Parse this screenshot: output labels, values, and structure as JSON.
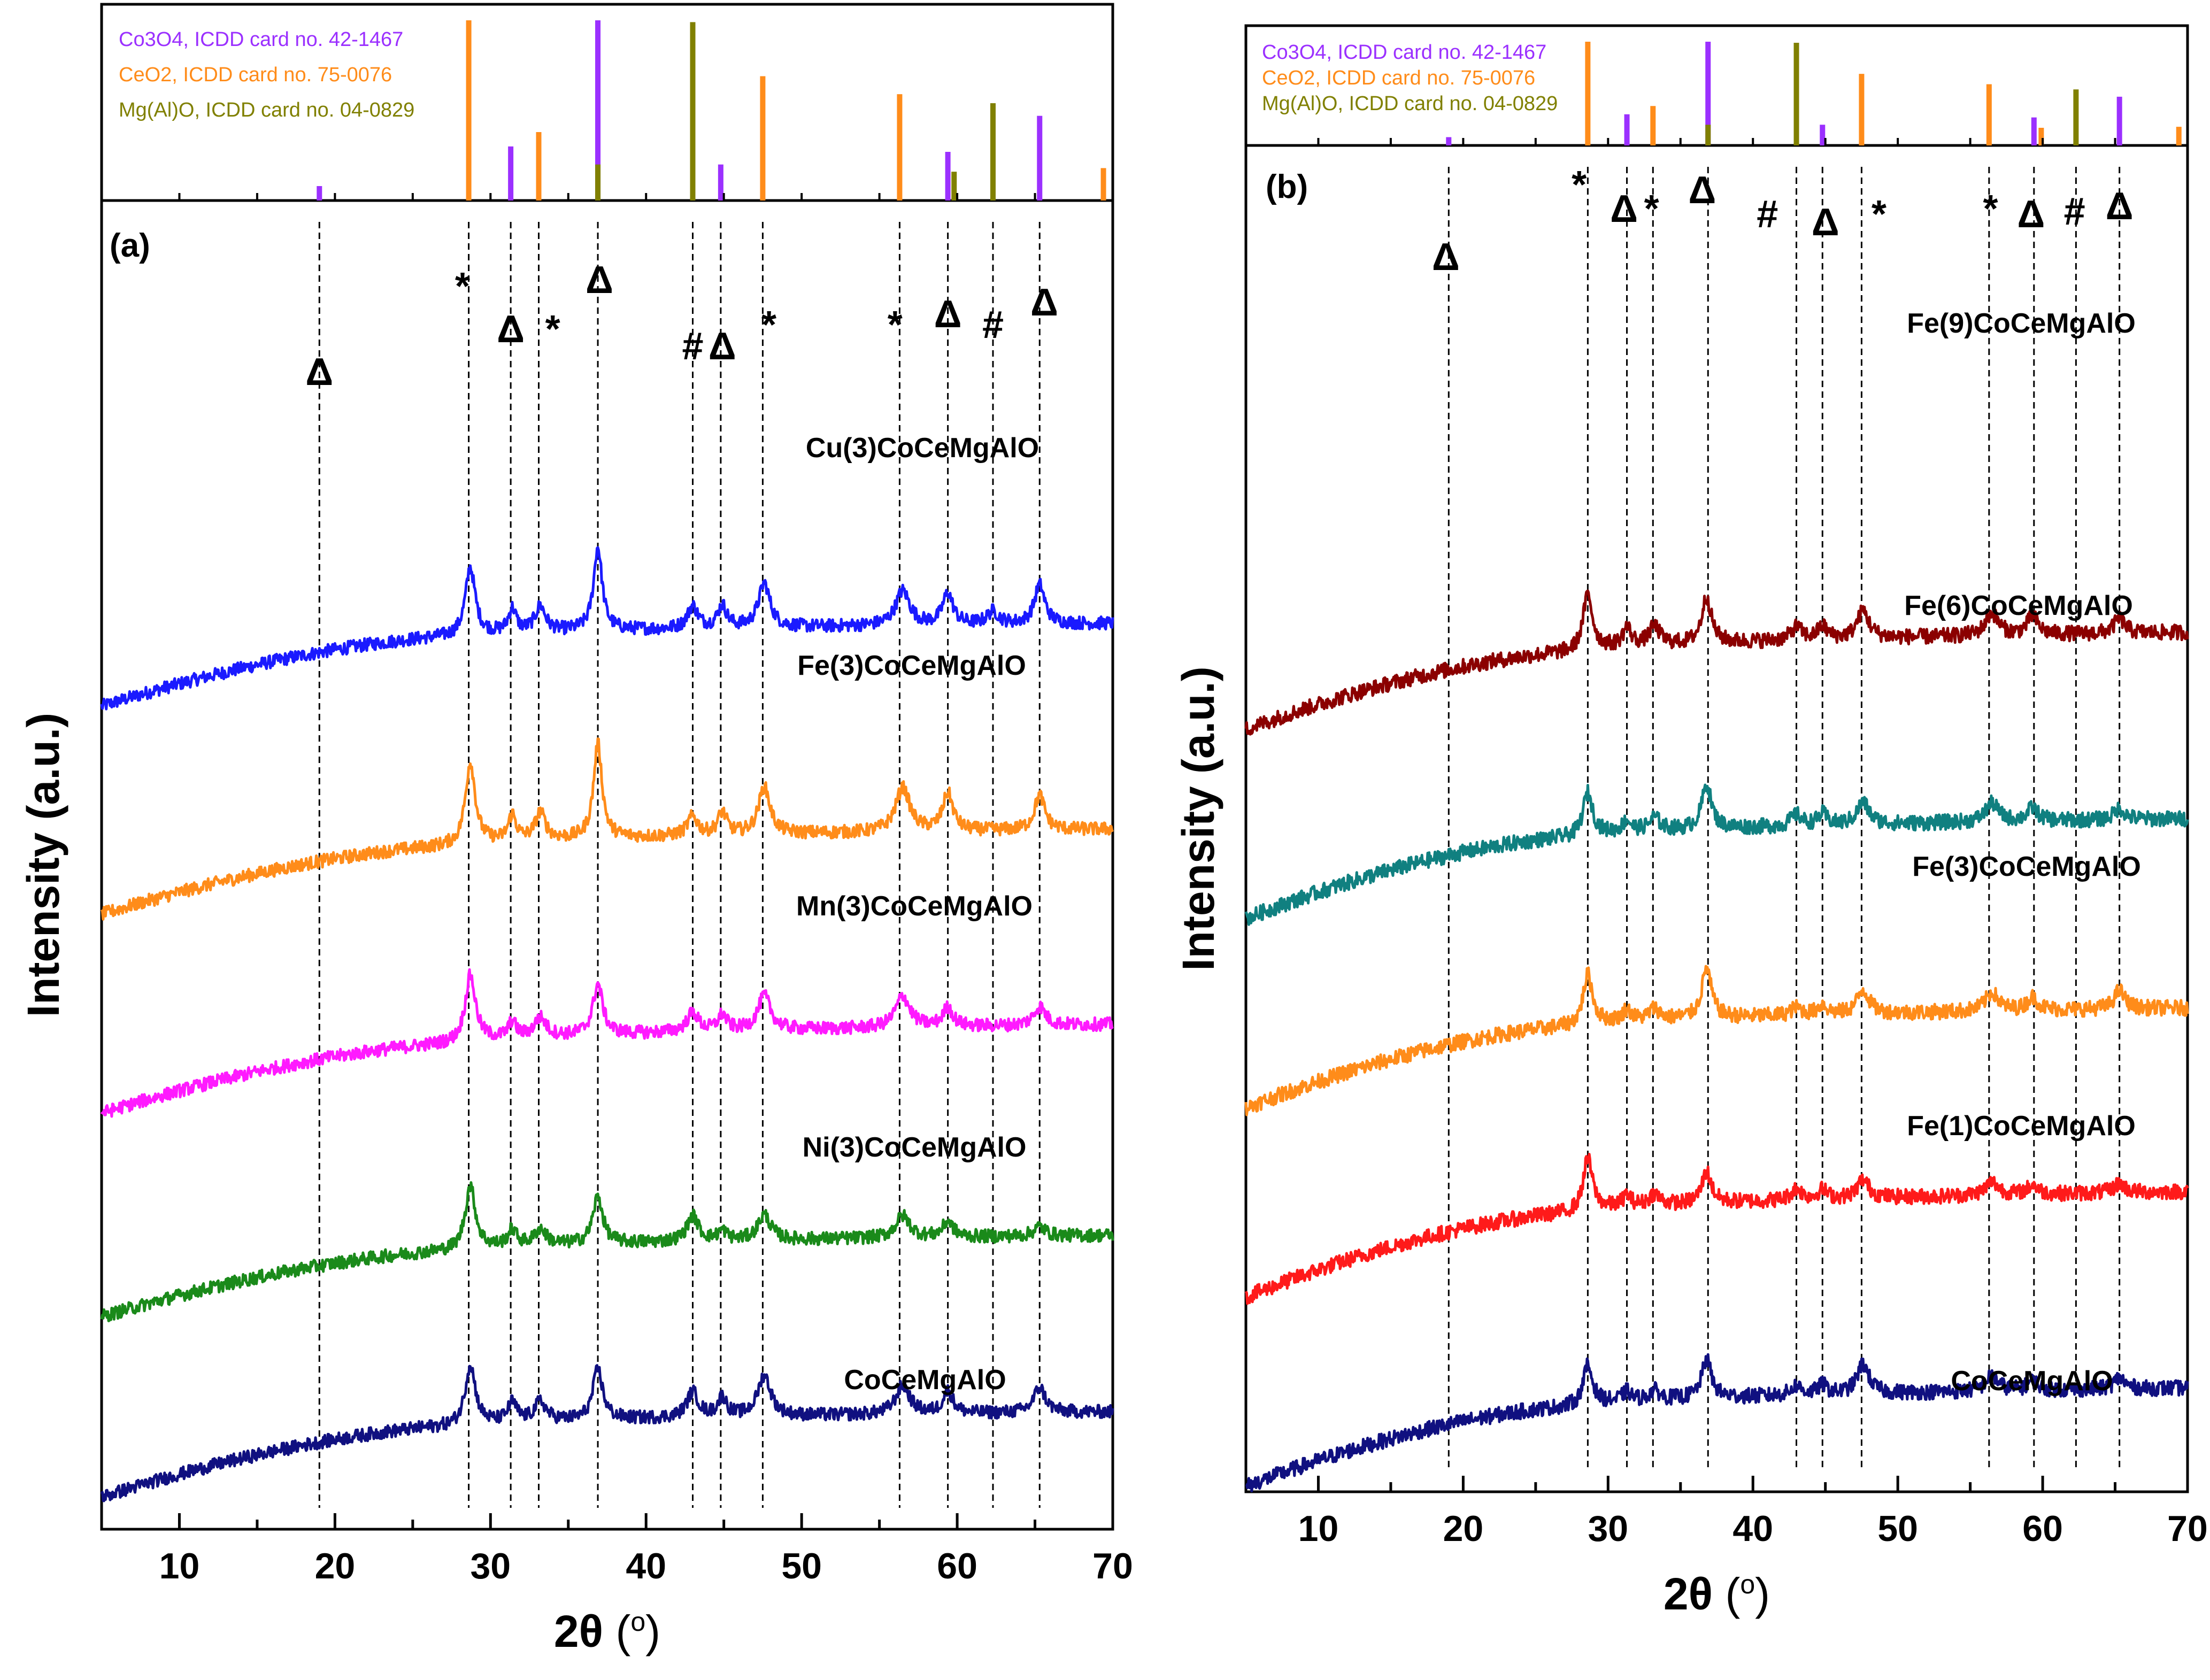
{
  "chart_data": [
    {
      "panel": "(a)",
      "type": "line",
      "xlabel": "2θ (°)",
      "xlabel_main": "2θ",
      "xlabel_unit": "o",
      "ylabel": "Intensity (a.u.)",
      "xlim": [
        5,
        70
      ],
      "xticks": [
        10,
        20,
        30,
        40,
        50,
        60,
        70
      ],
      "references": [
        {
          "name": "Co3O4",
          "label": "Co3O4, ICDD card no. 42-1467",
          "color": "#9b30ff",
          "peaks": [
            [
              19.0,
              0.08
            ],
            [
              31.3,
              0.3
            ],
            [
              36.9,
              1.0
            ],
            [
              44.8,
              0.2
            ],
            [
              59.4,
              0.27
            ],
            [
              65.3,
              0.47
            ]
          ]
        },
        {
          "name": "CeO2",
          "label": "CeO2, ICDD card no. 75-0076",
          "color": "#ff8c1a",
          "peaks": [
            [
              28.6,
              1.0
            ],
            [
              33.1,
              0.38
            ],
            [
              47.5,
              0.69
            ],
            [
              56.3,
              0.59
            ],
            [
              69.4,
              0.18
            ]
          ]
        },
        {
          "name": "Mg(Al)O",
          "label": "Mg(Al)O, ICDD card no. 04-0829",
          "color": "#808000",
          "peaks": [
            [
              36.9,
              0.2
            ],
            [
              43.0,
              0.99
            ],
            [
              62.3,
              0.54
            ],
            [
              59.8,
              0.16
            ]
          ]
        }
      ],
      "dashed_lines": [
        19.0,
        28.6,
        31.3,
        33.1,
        36.9,
        43.0,
        44.8,
        47.5,
        56.3,
        59.4,
        62.3,
        65.3
      ],
      "markers": [
        {
          "symbol": "Δ",
          "x": 19.0
        },
        {
          "symbol": "*",
          "x": 28.2
        },
        {
          "symbol": "Δ",
          "x": 31.3
        },
        {
          "symbol": "*",
          "x": 34.0
        },
        {
          "symbol": "Δ",
          "x": 37.0
        },
        {
          "symbol": "#",
          "x": 43.0
        },
        {
          "symbol": "Δ",
          "x": 44.9
        },
        {
          "symbol": "*",
          "x": 47.9
        },
        {
          "symbol": "*",
          "x": 56.0
        },
        {
          "symbol": "Δ",
          "x": 59.4
        },
        {
          "symbol": "#",
          "x": 62.3
        },
        {
          "symbol": "Δ",
          "x": 65.6
        }
      ],
      "series": [
        {
          "name": "Cu(3)CoCeMgAlO",
          "color": "#1a1aff",
          "base": 0.855,
          "bg_start": 0.0,
          "bg_mid": 0.56,
          "bg_end": 0.67,
          "peaks": [
            [
              28.7,
              0.43,
              0.38
            ],
            [
              31.4,
              0.15,
              0.3
            ],
            [
              33.2,
              0.16,
              0.4
            ],
            [
              36.9,
              0.53,
              0.33
            ],
            [
              43.0,
              0.14,
              0.4
            ],
            [
              44.9,
              0.14,
              0.35
            ],
            [
              47.6,
              0.28,
              0.45
            ],
            [
              56.5,
              0.22,
              0.55
            ],
            [
              59.4,
              0.2,
              0.4
            ],
            [
              62.3,
              0.08,
              0.45
            ],
            [
              65.3,
              0.25,
              0.4
            ]
          ]
        },
        {
          "name": "Fe(3)CoCeMgAlO",
          "color": "#ff8c1a",
          "base": 0.63,
          "bg_start": 0.0,
          "bg_mid": 0.55,
          "bg_end": 0.69,
          "peaks": [
            [
              28.7,
              0.52,
              0.38
            ],
            [
              31.4,
              0.16,
              0.3
            ],
            [
              33.2,
              0.17,
              0.4
            ],
            [
              36.9,
              0.6,
              0.33
            ],
            [
              43.0,
              0.12,
              0.4
            ],
            [
              44.9,
              0.14,
              0.35
            ],
            [
              47.6,
              0.3,
              0.45
            ],
            [
              56.5,
              0.28,
              0.55
            ],
            [
              59.4,
              0.24,
              0.4
            ],
            [
              65.3,
              0.22,
              0.4
            ]
          ]
        },
        {
          "name": "Mn(3)CoCeMgAlO",
          "color": "#ff1aff",
          "base": 0.415,
          "bg_start": 0.0,
          "bg_mid": 0.56,
          "bg_end": 0.72,
          "peaks": [
            [
              28.7,
              0.42,
              0.4
            ],
            [
              31.4,
              0.1,
              0.3
            ],
            [
              33.2,
              0.12,
              0.45
            ],
            [
              36.9,
              0.32,
              0.38
            ],
            [
              43.0,
              0.12,
              0.45
            ],
            [
              44.9,
              0.1,
              0.35
            ],
            [
              47.6,
              0.22,
              0.5
            ],
            [
              56.5,
              0.2,
              0.55
            ],
            [
              59.4,
              0.12,
              0.4
            ],
            [
              65.3,
              0.12,
              0.45
            ]
          ]
        },
        {
          "name": "Ni(3)CoCeMgAlO",
          "color": "#1a8a1a",
          "base": 0.195,
          "bg_start": 0.0,
          "bg_mid": 0.53,
          "bg_end": 0.66,
          "peaks": [
            [
              28.7,
              0.4,
              0.4
            ],
            [
              31.4,
              0.1,
              0.35
            ],
            [
              33.2,
              0.1,
              0.45
            ],
            [
              36.9,
              0.3,
              0.38
            ],
            [
              43.0,
              0.16,
              0.45
            ],
            [
              44.9,
              0.06,
              0.35
            ],
            [
              47.6,
              0.16,
              0.5
            ],
            [
              56.5,
              0.14,
              0.55
            ],
            [
              59.4,
              0.1,
              0.4
            ],
            [
              65.3,
              0.06,
              0.45
            ]
          ]
        },
        {
          "name": "CoCeMgAlO",
          "color": "#101080",
          "base": 0.0,
          "bg_start": 0.0,
          "bg_mid": 0.57,
          "bg_end": 0.69,
          "peaks": [
            [
              28.7,
              0.38,
              0.4
            ],
            [
              31.4,
              0.12,
              0.35
            ],
            [
              33.2,
              0.12,
              0.45
            ],
            [
              36.9,
              0.32,
              0.38
            ],
            [
              43.0,
              0.16,
              0.45
            ],
            [
              44.9,
              0.12,
              0.35
            ],
            [
              47.6,
              0.26,
              0.5
            ],
            [
              56.5,
              0.18,
              0.55
            ],
            [
              59.4,
              0.14,
              0.4
            ],
            [
              65.3,
              0.16,
              0.45
            ]
          ]
        }
      ]
    },
    {
      "panel": "(b)",
      "type": "line",
      "xlabel": "2θ (°)",
      "xlabel_main": "2θ",
      "xlabel_unit": "o",
      "ylabel": "Intensity (a.u.)",
      "xlim": [
        5,
        70
      ],
      "xticks": [
        10,
        20,
        30,
        40,
        50,
        60,
        70
      ],
      "references": [
        {
          "name": "Co3O4",
          "label": "Co3O4, ICDD card no. 42-1467",
          "color": "#9b30ff",
          "peaks": [
            [
              19.0,
              0.08
            ],
            [
              31.3,
              0.3
            ],
            [
              36.9,
              1.0
            ],
            [
              44.8,
              0.2
            ],
            [
              59.4,
              0.27
            ],
            [
              65.3,
              0.47
            ]
          ]
        },
        {
          "name": "CeO2",
          "label": "CeO2, ICDD card no. 75-0076",
          "color": "#ff8c1a",
          "peaks": [
            [
              28.6,
              1.0
            ],
            [
              33.1,
              0.38
            ],
            [
              47.5,
              0.69
            ],
            [
              56.3,
              0.59
            ],
            [
              59.9,
              0.17
            ],
            [
              69.4,
              0.18
            ]
          ]
        },
        {
          "name": "Mg(Al)O",
          "label": "Mg(Al)O, ICDD card no. 04-0829",
          "color": "#808000",
          "peaks": [
            [
              36.9,
              0.2
            ],
            [
              43.0,
              0.99
            ],
            [
              62.3,
              0.54
            ]
          ]
        }
      ],
      "dashed_lines": [
        19.0,
        28.6,
        31.3,
        33.1,
        36.9,
        43.0,
        44.8,
        47.5,
        56.3,
        59.4,
        62.3,
        65.3
      ],
      "markers": [
        {
          "symbol": "Δ",
          "x": 18.8
        },
        {
          "symbol": "*",
          "x": 28.0
        },
        {
          "symbol": "Δ",
          "x": 31.1
        },
        {
          "symbol": "*",
          "x": 33.0
        },
        {
          "symbol": "Δ",
          "x": 36.5
        },
        {
          "symbol": "#",
          "x": 41.0
        },
        {
          "symbol": "Δ",
          "x": 45.0
        },
        {
          "symbol": "*",
          "x": 48.7
        },
        {
          "symbol": "*",
          "x": 56.4
        },
        {
          "symbol": "Δ",
          "x": 59.2
        },
        {
          "symbol": "#",
          "x": 62.2
        },
        {
          "symbol": "Δ",
          "x": 65.3
        }
      ],
      "series": [
        {
          "name": "Fe(9)CoCeMgAlO",
          "color": "#8b0000",
          "base": 0.8,
          "bg_start": 0.0,
          "bg_mid": 0.53,
          "bg_end": 0.67,
          "peaks": [
            [
              28.6,
              0.3,
              0.4
            ],
            [
              31.3,
              0.1,
              0.35
            ],
            [
              33.2,
              0.1,
              0.45
            ],
            [
              36.8,
              0.25,
              0.4
            ],
            [
              43.0,
              0.07,
              0.45
            ],
            [
              44.8,
              0.07,
              0.4
            ],
            [
              47.6,
              0.15,
              0.5
            ],
            [
              56.5,
              0.12,
              0.55
            ],
            [
              59.3,
              0.1,
              0.45
            ],
            [
              65.3,
              0.08,
              0.45
            ]
          ]
        },
        {
          "name": "Fe(6)CoCeMgAlO",
          "color": "#108080",
          "base": 0.6,
          "bg_start": 0.0,
          "bg_mid": 0.56,
          "bg_end": 0.69,
          "peaks": [
            [
              28.6,
              0.23,
              0.4
            ],
            [
              31.3,
              0.06,
              0.35
            ],
            [
              33.2,
              0.07,
              0.45
            ],
            [
              36.8,
              0.24,
              0.4
            ],
            [
              43.0,
              0.06,
              0.45
            ],
            [
              44.8,
              0.06,
              0.4
            ],
            [
              47.6,
              0.12,
              0.5
            ],
            [
              56.5,
              0.1,
              0.55
            ],
            [
              59.3,
              0.07,
              0.45
            ],
            [
              65.3,
              0.06,
              0.45
            ]
          ]
        },
        {
          "name": "Fe(3)CoCeMgAlO",
          "color": "#ff8c1a",
          "base": 0.4,
          "bg_start": 0.0,
          "bg_mid": 0.56,
          "bg_end": 0.69,
          "peaks": [
            [
              28.6,
              0.27,
              0.4
            ],
            [
              31.3,
              0.06,
              0.35
            ],
            [
              33.2,
              0.06,
              0.45
            ],
            [
              36.8,
              0.27,
              0.4
            ],
            [
              43.0,
              0.04,
              0.45
            ],
            [
              44.8,
              0.05,
              0.4
            ],
            [
              47.6,
              0.13,
              0.5
            ],
            [
              56.5,
              0.1,
              0.55
            ],
            [
              59.3,
              0.07,
              0.45
            ],
            [
              65.3,
              0.1,
              0.45
            ]
          ]
        },
        {
          "name": "Fe(1)CoCeMgAlO",
          "color": "#ff1a1a",
          "base": 0.2,
          "bg_start": 0.0,
          "bg_mid": 0.58,
          "bg_end": 0.73,
          "peaks": [
            [
              28.6,
              0.28,
              0.4
            ],
            [
              31.3,
              0.06,
              0.35
            ],
            [
              33.2,
              0.06,
              0.45
            ],
            [
              36.8,
              0.17,
              0.4
            ],
            [
              43.0,
              0.06,
              0.45
            ],
            [
              44.8,
              0.05,
              0.4
            ],
            [
              47.6,
              0.1,
              0.5
            ],
            [
              56.5,
              0.07,
              0.55
            ],
            [
              59.3,
              0.05,
              0.45
            ],
            [
              65.3,
              0.05,
              0.45
            ]
          ]
        },
        {
          "name": "CoCeMgAlO",
          "color": "#101080",
          "base": 0.0,
          "bg_start": 0.0,
          "bg_mid": 0.55,
          "bg_end": 0.68,
          "peaks": [
            [
              28.6,
              0.21,
              0.4
            ],
            [
              31.3,
              0.05,
              0.35
            ],
            [
              33.2,
              0.05,
              0.45
            ],
            [
              36.8,
              0.21,
              0.4
            ],
            [
              43.0,
              0.05,
              0.45
            ],
            [
              44.8,
              0.05,
              0.4
            ],
            [
              47.6,
              0.16,
              0.5
            ],
            [
              56.5,
              0.08,
              0.55
            ],
            [
              59.3,
              0.05,
              0.45
            ],
            [
              65.3,
              0.06,
              0.45
            ]
          ]
        }
      ]
    }
  ]
}
